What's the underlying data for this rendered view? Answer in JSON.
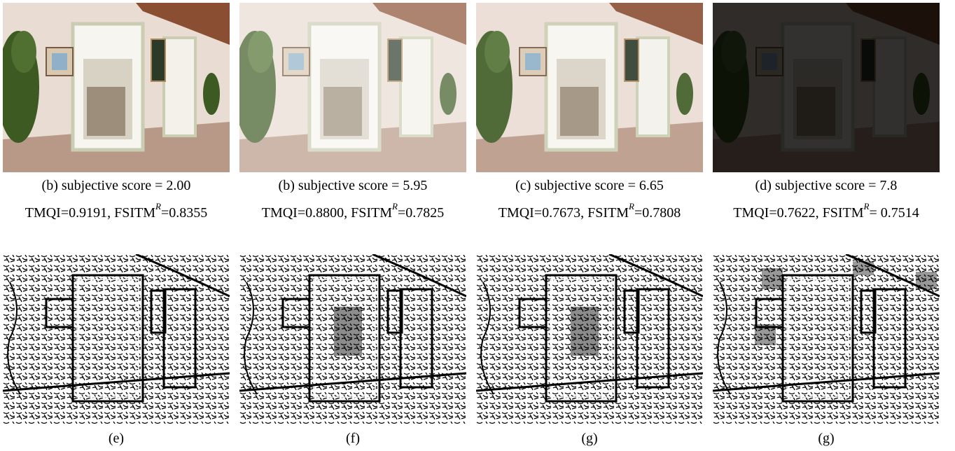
{
  "panels": [
    {
      "caption": "(b) subjective score = 2.00",
      "tmqi": "TMQI=0.9191,",
      "fsitm": "FSITM",
      "sup": "R",
      "fsitm_value": "=0.8355",
      "edge_caption": "(e)"
    },
    {
      "caption": "(b) subjective score = 5.95",
      "tmqi": "TMQI=0.8800,",
      "fsitm": "FSITM",
      "sup": "R",
      "fsitm_value": "=0.7825",
      "edge_caption": "(f)"
    },
    {
      "caption": "(c) subjective score = 6.65",
      "tmqi": "TMQI=0.7673,",
      "fsitm": "FSITM",
      "sup": "R",
      "fsitm_value": "=0.7808",
      "edge_caption": "(g)"
    },
    {
      "caption": "(d) subjective score = 7.8",
      "tmqi": "TMQI=0.7622,",
      "fsitm": "FSITM",
      "sup": "R",
      "fsitm_value": "= 0.7514",
      "edge_caption": "(g)"
    }
  ]
}
